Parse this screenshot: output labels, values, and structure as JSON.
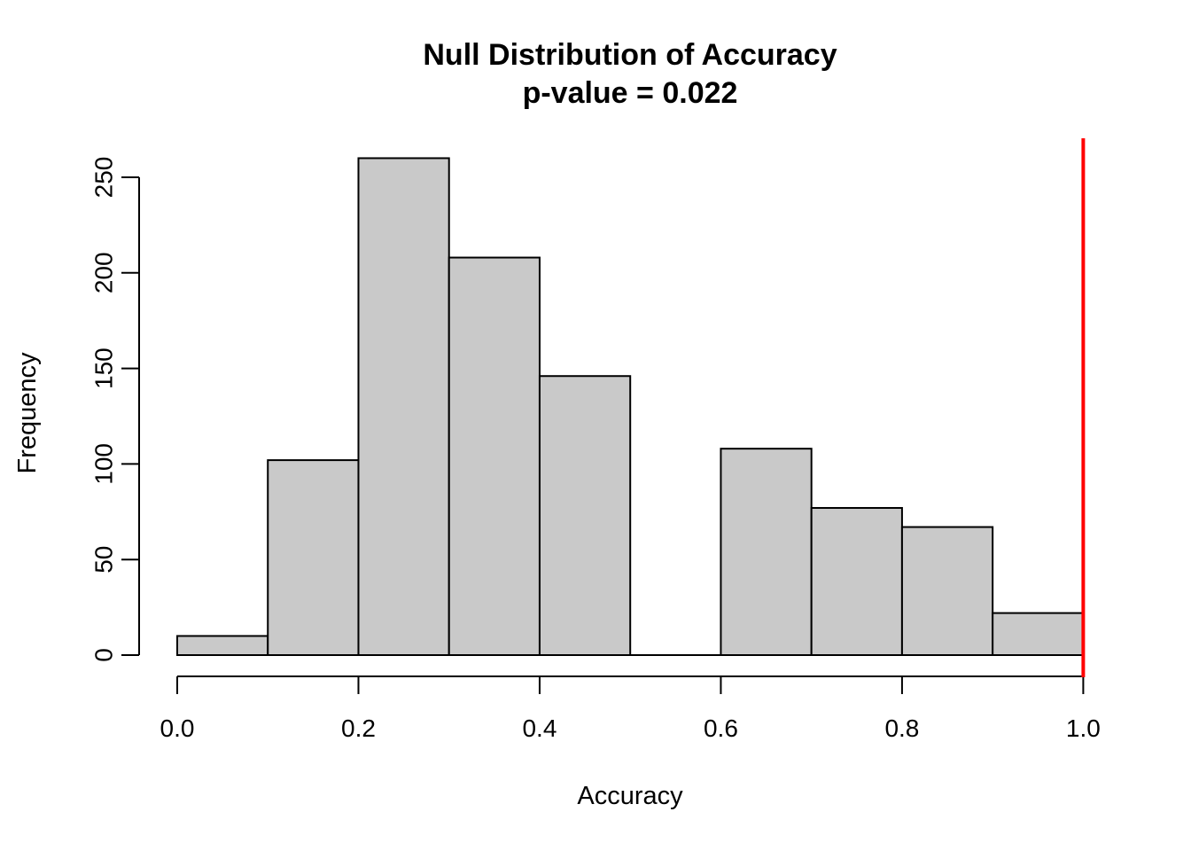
{
  "chart_data": {
    "type": "bar",
    "subtype": "histogram",
    "title": "Null Distribution of Accuracy",
    "subtitle": "p-value = 0.022",
    "xlabel": "Accuracy",
    "ylabel": "Frequency",
    "bin_edges": [
      0.0,
      0.1,
      0.2,
      0.3,
      0.4,
      0.5,
      0.6,
      0.7,
      0.8,
      0.9,
      1.0
    ],
    "counts": [
      10,
      102,
      260,
      208,
      146,
      0,
      108,
      77,
      67,
      22
    ],
    "x_tick_values": [
      0.0,
      0.2,
      0.4,
      0.6,
      0.8,
      1.0
    ],
    "x_tick_labels": [
      "0.0",
      "0.2",
      "0.4",
      "0.6",
      "0.8",
      "1.0"
    ],
    "y_tick_values": [
      0,
      50,
      100,
      150,
      200,
      250
    ],
    "y_tick_labels": [
      "0",
      "50",
      "100",
      "150",
      "200",
      "250"
    ],
    "xlim": [
      0.0,
      1.0
    ],
    "ylim": [
      0,
      260
    ],
    "grid": false,
    "legend_position": "none",
    "p_value": 0.022,
    "reference_line": {
      "x": 1.0,
      "color": "#ff0000"
    },
    "bar_fill": "#c9c9c9",
    "bar_border": "#000000",
    "axis_color": "#000000",
    "background": "#ffffff"
  }
}
